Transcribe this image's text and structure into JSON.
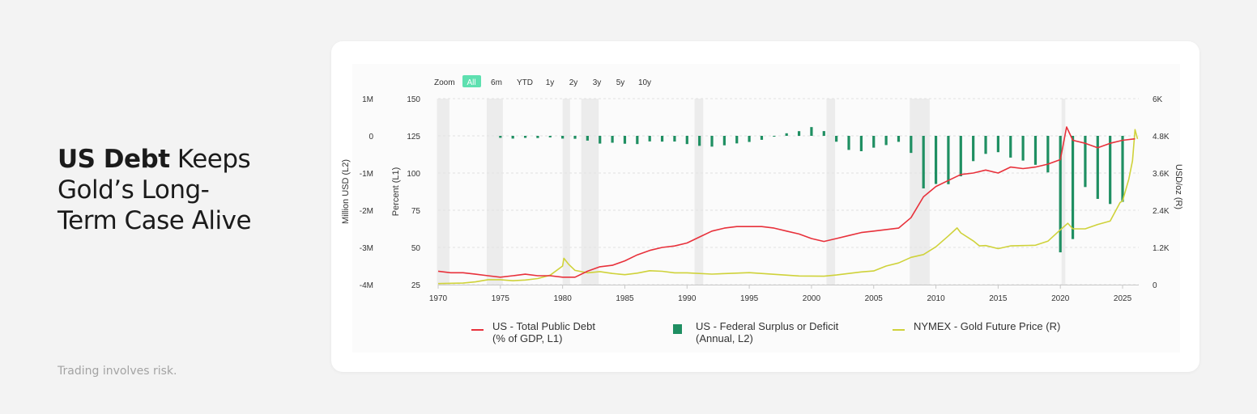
{
  "headline": {
    "bold": "US Debt",
    "rest": "Keeps Gold’s Long-Term Case Alive"
  },
  "disclaimer": "Trading involves risk.",
  "zoom": {
    "label": "Zoom",
    "options": [
      "All",
      "6m",
      "YTD",
      "1y",
      "2y",
      "3y",
      "5y",
      "10y"
    ],
    "active": "All"
  },
  "colors": {
    "debt": "#e8313b",
    "deficit": "#1f8f62",
    "gold": "#cfd23a",
    "zoom_active": "#5ee0b0",
    "recession": "#ececec"
  },
  "chart_data": {
    "type": "line",
    "x_ticks": [
      "1970",
      "1975",
      "1980",
      "1985",
      "1990",
      "1995",
      "2000",
      "2005",
      "2010",
      "2015",
      "2020",
      "2025"
    ],
    "xlim": [
      1970,
      2026.3
    ],
    "axes": {
      "left_outer": {
        "label": "Million USD (L2)",
        "ticks": [
          "1M",
          "0",
          "-1M",
          "-2M",
          "-3M",
          "-4M"
        ],
        "range": [
          -4000000,
          1000000
        ]
      },
      "left_inner": {
        "label": "Percent (L1)",
        "ticks": [
          "150",
          "125",
          "100",
          "75",
          "50",
          "25"
        ],
        "range": [
          25,
          150
        ]
      },
      "right": {
        "label": "USD/oz (R)",
        "ticks": [
          "6K",
          "4.8K",
          "3.6K",
          "2.4K",
          "1.2K",
          "0"
        ],
        "range": [
          0,
          6000
        ]
      }
    },
    "recession_bands": [
      [
        1969.9,
        1970.9
      ],
      [
        1973.9,
        1975.2
      ],
      [
        1980.0,
        1980.6
      ],
      [
        1981.5,
        1982.9
      ],
      [
        1990.6,
        1991.3
      ],
      [
        2001.2,
        2001.9
      ],
      [
        2007.9,
        2009.5
      ],
      [
        2020.1,
        2020.4
      ]
    ],
    "series": [
      {
        "name": "US - Total Public Debt (% of GDP, L1)",
        "axis": "left_inner",
        "kind": "line",
        "x": [
          1970,
          1971,
          1972,
          1973,
          1974,
          1975,
          1976,
          1977,
          1978,
          1979,
          1980,
          1981,
          1982,
          1983,
          1984,
          1985,
          1986,
          1987,
          1988,
          1989,
          1990,
          1991,
          1992,
          1993,
          1994,
          1995,
          1996,
          1997,
          1998,
          1999,
          2000,
          2001,
          2002,
          2003,
          2004,
          2005,
          2006,
          2007,
          2008,
          2009,
          2010,
          2011,
          2012,
          2013,
          2014,
          2015,
          2016,
          2017,
          2018,
          2019,
          2020.0,
          2020.5,
          2021,
          2022,
          2023,
          2024,
          2025,
          2026
        ],
        "values": [
          34,
          33,
          33,
          32,
          31,
          30,
          31,
          32,
          31,
          31,
          30,
          30,
          34,
          37,
          38,
          41,
          45,
          48,
          50,
          51,
          53,
          57,
          61,
          63,
          64,
          64,
          64,
          63,
          61,
          59,
          56,
          54,
          56,
          58,
          60,
          61,
          62,
          63,
          70,
          84,
          91,
          95,
          99,
          100,
          102,
          100,
          104,
          103,
          104,
          106,
          109,
          131,
          122,
          120,
          117,
          120,
          122,
          123
        ]
      },
      {
        "name": "US - Federal Surplus or Deficit (Annual, L2)",
        "axis": "left_outer",
        "kind": "bar",
        "x": [
          1975,
          1976,
          1977,
          1978,
          1979,
          1980,
          1981,
          1982,
          1983,
          1984,
          1985,
          1986,
          1987,
          1988,
          1989,
          1990,
          1991,
          1992,
          1993,
          1994,
          1995,
          1996,
          1997,
          1998,
          1999,
          2000,
          2001,
          2002,
          2003,
          2004,
          2005,
          2006,
          2007,
          2008,
          2009,
          2010,
          2011,
          2012,
          2013,
          2014,
          2015,
          2016,
          2017,
          2018,
          2019,
          2020,
          2021,
          2022,
          2023,
          2024,
          2025
        ],
        "values": [
          -53000,
          -74000,
          -54000,
          -59000,
          -41000,
          -74000,
          -79000,
          -128000,
          -208000,
          -185000,
          -212000,
          -221000,
          -150000,
          -155000,
          -153000,
          -221000,
          -269000,
          -290000,
          -255000,
          -203000,
          -164000,
          -107000,
          -22000,
          69000,
          126000,
          236000,
          128000,
          -158000,
          -378000,
          -413000,
          -318000,
          -248000,
          -161000,
          -459000,
          -1413000,
          -1294000,
          -1300000,
          -1087000,
          -680000,
          -485000,
          -439000,
          -585000,
          -665000,
          -779000,
          -984000,
          -3132000,
          -2775000,
          -1376000,
          -1695000,
          -1832000,
          -1775000
        ]
      },
      {
        "name": "NYMEX - Gold Future Price (R)",
        "axis": "right",
        "kind": "line",
        "x": [
          1970,
          1972,
          1973,
          1974,
          1975,
          1976,
          1977,
          1978,
          1979,
          1980.0,
          1980.1,
          1980.5,
          1981,
          1982,
          1983,
          1984,
          1985,
          1986,
          1987,
          1988,
          1989,
          1990,
          1992,
          1995,
          1999,
          2001,
          2002,
          2003,
          2004,
          2005,
          2006,
          2007,
          2008,
          2009,
          2010,
          2011.0,
          2011.7,
          2012,
          2013,
          2013.5,
          2014,
          2015,
          2016,
          2017,
          2018,
          2019,
          2020,
          2020.6,
          2021,
          2022,
          2023,
          2024,
          2024.8,
          2025,
          2025.5,
          2025.8,
          2026.0,
          2026.2
        ],
        "values": [
          35,
          50,
          90,
          160,
          160,
          125,
          148,
          195,
          305,
          600,
          850,
          650,
          460,
          380,
          420,
          360,
          320,
          370,
          450,
          430,
          380,
          380,
          340,
          385,
          280,
          270,
          310,
          360,
          410,
          440,
          600,
          700,
          880,
          970,
          1220,
          1570,
          1830,
          1670,
          1410,
          1250,
          1260,
          1160,
          1250,
          1260,
          1270,
          1400,
          1770,
          1980,
          1800,
          1800,
          1940,
          2050,
          2650,
          2700,
          3400,
          4000,
          5000,
          4700
        ]
      }
    ]
  }
}
